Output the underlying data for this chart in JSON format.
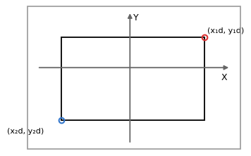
{
  "rect_x1": -1.7,
  "rect_y1": -1.3,
  "rect_x2": 1.85,
  "rect_y2": 0.75,
  "pt1": [
    1.85,
    0.75
  ],
  "pt2": [
    -1.7,
    -1.3
  ],
  "pt1_label": "(x₁d, y₁d)",
  "pt2_label": "(x₂d, y₂d)",
  "pt1_color": "#dd3333",
  "pt2_color": "#3377cc",
  "axis_color": "#666666",
  "rect_color": "#111111",
  "xlabel": "X",
  "ylabel": "Y",
  "xlim": [
    -2.3,
    2.5
  ],
  "ylim": [
    -1.9,
    1.4
  ],
  "background_color": "#ffffff",
  "border_color": "#999999",
  "font_size": 8,
  "axis_label_fontsize": 9
}
